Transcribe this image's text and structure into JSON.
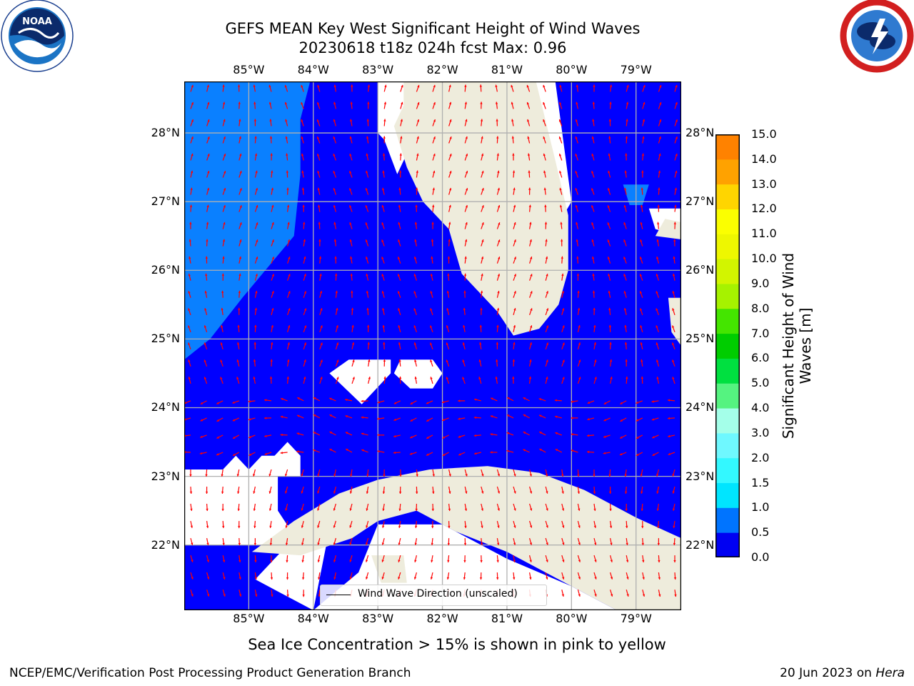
{
  "header": {
    "title_line1": "GEFS MEAN Key West Significant Height of Wind Waves",
    "title_line2": "20230618 t18z 024h fcst   Max: 0.96"
  },
  "logos": {
    "left": "noaa-logo",
    "right": "national-weather-service-logo"
  },
  "map": {
    "lon_ticks": [
      "85°W",
      "84°W",
      "83°W",
      "82°W",
      "81°W",
      "80°W",
      "79°W"
    ],
    "lat_ticks": [
      "28°N",
      "27°N",
      "26°N",
      "25°N",
      "24°N",
      "23°N",
      "22°N"
    ],
    "lon_range": [
      -86.0,
      -78.3
    ],
    "lat_range": [
      21.05,
      28.75
    ],
    "land_color": "#eeecdc",
    "wave_low_color": "#0000ff",
    "wave_mid_color": "#0a80ff",
    "arrow_color": "#ff0000",
    "legend_label": "Wind Wave Direction (unscaled)"
  },
  "colorbar": {
    "label": "Significant Height of Wind Waves [m]",
    "ticks": [
      "15.0",
      "14.0",
      "13.0",
      "12.0",
      "11.0",
      "10.0",
      "9.0",
      "8.0",
      "7.0",
      "6.0",
      "5.0",
      "4.0",
      "3.0",
      "2.0",
      "1.5",
      "1.0",
      "0.5",
      "0.0"
    ],
    "colors": [
      "#0000f2",
      "#0074ff",
      "#00e5ff",
      "#33f8ff",
      "#6ff8ff",
      "#a4ffe9",
      "#55f380",
      "#00e040",
      "#00cd00",
      "#44e500",
      "#a6f200",
      "#d2f500",
      "#eef700",
      "#fbff00",
      "#ffd500",
      "#ffa200",
      "#ff8200",
      "#ff4100",
      "#ff0000"
    ]
  },
  "notes": {
    "sea_ice": "Sea Ice Concentration > 15% is shown in pink to yellow",
    "footer_left": "NCEP/EMC/Verification Post Processing Product Generation Branch",
    "footer_date": "20 Jun 2023 on ",
    "footer_host": "Hera"
  }
}
